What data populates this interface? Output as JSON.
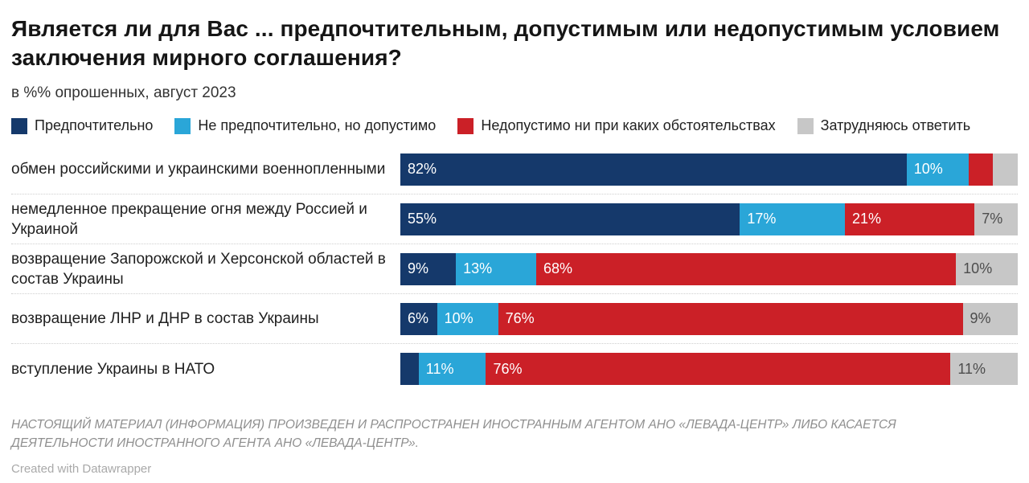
{
  "page": {
    "title": "Является ли для Вас ... предпочтительным, допустимым или недопустимым условием заключения мирного соглашения?",
    "subtitle": "в %% опрошенных, август 2023",
    "disclaimer": "НАСТОЯЩИЙ МАТЕРИАЛ (ИНФОРМАЦИЯ) ПРОИЗВЕДЕН И РАСПРОСТРАНЕН ИНОСТРАННЫМ АГЕНТОМ АНО «ЛЕВАДА-ЦЕНТР» ЛИБО КАСАЕТСЯ ДЕЯТЕЛЬНОСТИ ИНОСТРАННОГО АГЕНТА АНО «ЛЕВАДА-ЦЕНТР».",
    "credit": "Created with Datawrapper"
  },
  "chart_data": {
    "type": "bar",
    "stacked": true,
    "orientation": "horizontal",
    "unit": "%",
    "xlim": [
      0,
      100
    ],
    "legend_position": "top",
    "title": "Является ли для Вас ... предпочтительным, допустимым или недопустимым условием заключения мирного соглашения?",
    "subtitle": "в %% опрошенных, август 2023",
    "series_names": [
      "Предпочтительно",
      "Не предпочтительно, но допустимо",
      "Недопустимо ни при каких обстоятельствах",
      "Затрудняюсь ответить"
    ],
    "series_colors": [
      "#15396b",
      "#2aa6d8",
      "#cb2027",
      "#c7c7c7"
    ],
    "value_text_colors": [
      "#ffffff",
      "#ffffff",
      "#ffffff",
      "#4d4d4d"
    ],
    "rows": [
      {
        "category": "обмен российскими и украинскими военнопленными",
        "values": [
          82,
          10,
          4,
          4
        ],
        "labels": [
          "82%",
          "10%",
          "",
          ""
        ]
      },
      {
        "category": "немедленное прекращение огня между Россией и Украиной",
        "values": [
          55,
          17,
          21,
          7
        ],
        "labels": [
          "55%",
          "17%",
          "21%",
          "7%"
        ]
      },
      {
        "category": "возвращение Запорожской и Херсонской областей в состав Украины",
        "values": [
          9,
          13,
          68,
          10
        ],
        "labels": [
          "9%",
          "13%",
          "68%",
          "10%"
        ]
      },
      {
        "category": "возвращение ЛНР и ДНР в состав Украины",
        "values": [
          6,
          10,
          76,
          9
        ],
        "labels": [
          "6%",
          "10%",
          "76%",
          "9%"
        ]
      },
      {
        "category": "вступление Украины в НАТО",
        "values": [
          3,
          11,
          76,
          11
        ],
        "labels": [
          "",
          "11%",
          "76%",
          "11%"
        ]
      }
    ]
  }
}
